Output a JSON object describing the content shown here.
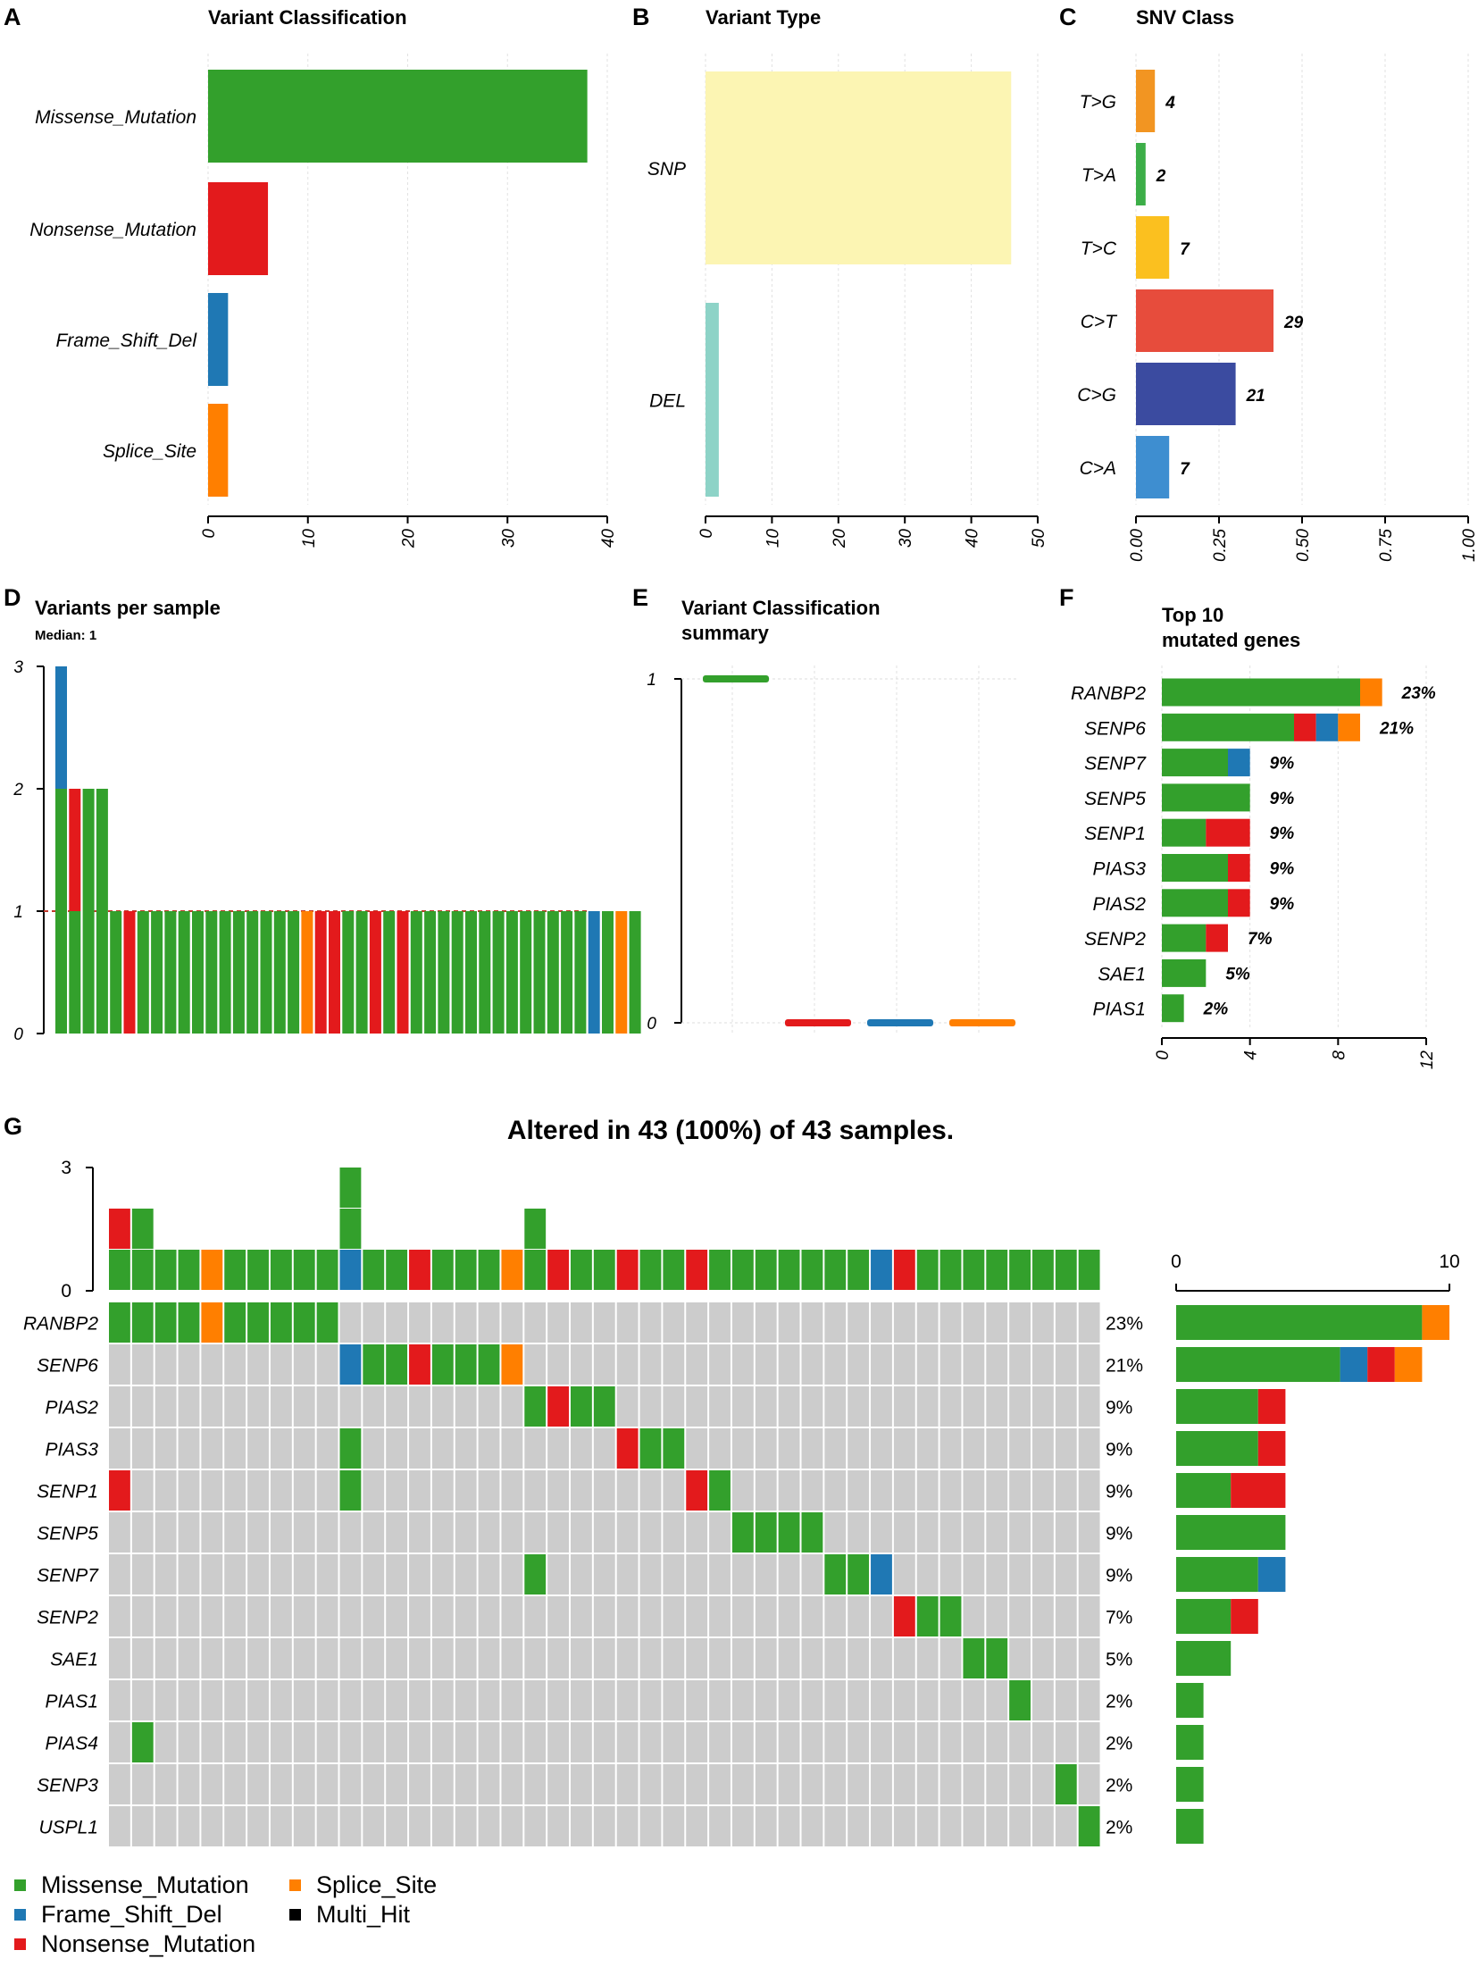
{
  "colors": {
    "Missense_Mutation": "#33a02c",
    "Nonsense_Mutation": "#e31a1c",
    "Frame_Shift_Del": "#1f78b4",
    "Splice_Site": "#ff7f00",
    "Multi_Hit": "#000000",
    "SNP": "#fcf5b3",
    "DEL": "#8dd3c7",
    "none": "#cccccc",
    "T>G": "#f29522",
    "T>A": "#3cae48",
    "T>C": "#fbc01f",
    "C>T": "#e74c3c",
    "C>G": "#3b4ba0",
    "C>A": "#3e8ed0"
  },
  "chart_data": [
    {
      "panel": "A",
      "type": "bar",
      "orientation": "horizontal",
      "title": "Variant Classification",
      "categories": [
        "Missense_Mutation",
        "Nonsense_Mutation",
        "Frame_Shift_Del",
        "Splice_Site"
      ],
      "values": [
        38,
        6,
        2,
        2
      ],
      "xlim": [
        0,
        40
      ],
      "xticks": [
        "0",
        "10",
        "20",
        "30",
        "40"
      ],
      "grid": true
    },
    {
      "panel": "B",
      "type": "bar",
      "orientation": "horizontal",
      "title": "Variant Type",
      "categories": [
        "SNP",
        "DEL"
      ],
      "values": [
        46,
        2
      ],
      "xlim": [
        0,
        50
      ],
      "xticks": [
        "0",
        "10",
        "20",
        "30",
        "40",
        "50"
      ],
      "grid": true
    },
    {
      "panel": "C",
      "type": "bar",
      "orientation": "horizontal",
      "title": "SNV Class",
      "categories": [
        "T>G",
        "T>A",
        "T>C",
        "C>T",
        "C>G",
        "C>A"
      ],
      "counts": [
        4,
        2,
        7,
        29,
        21,
        7
      ],
      "fractions": [
        0.057,
        0.029,
        0.1,
        0.414,
        0.3,
        0.1
      ],
      "xlim": [
        0,
        1
      ],
      "xticks": [
        "0.00",
        "0.25",
        "0.50",
        "0.75",
        "1.00"
      ],
      "grid": true
    },
    {
      "panel": "D",
      "type": "bar",
      "stacked": true,
      "title": "Variants per sample",
      "subtitle": "Median: 1",
      "ylim": [
        0,
        3
      ],
      "yticks": [
        "0",
        "1",
        "2",
        "3"
      ],
      "samples": [
        [
          "Missense_Mutation",
          "Missense_Mutation",
          "Frame_Shift_Del"
        ],
        [
          "Missense_Mutation",
          "Nonsense_Mutation"
        ],
        [
          "Missense_Mutation",
          "Missense_Mutation"
        ],
        [
          "Missense_Mutation",
          "Missense_Mutation"
        ],
        [
          "Missense_Mutation"
        ],
        [
          "Nonsense_Mutation"
        ],
        [
          "Missense_Mutation"
        ],
        [
          "Missense_Mutation"
        ],
        [
          "Missense_Mutation"
        ],
        [
          "Missense_Mutation"
        ],
        [
          "Missense_Mutation"
        ],
        [
          "Missense_Mutation"
        ],
        [
          "Missense_Mutation"
        ],
        [
          "Missense_Mutation"
        ],
        [
          "Missense_Mutation"
        ],
        [
          "Missense_Mutation"
        ],
        [
          "Missense_Mutation"
        ],
        [
          "Missense_Mutation"
        ],
        [
          "Splice_Site"
        ],
        [
          "Nonsense_Mutation"
        ],
        [
          "Nonsense_Mutation"
        ],
        [
          "Missense_Mutation"
        ],
        [
          "Missense_Mutation"
        ],
        [
          "Nonsense_Mutation"
        ],
        [
          "Missense_Mutation"
        ],
        [
          "Nonsense_Mutation"
        ],
        [
          "Missense_Mutation"
        ],
        [
          "Missense_Mutation"
        ],
        [
          "Missense_Mutation"
        ],
        [
          "Missense_Mutation"
        ],
        [
          "Missense_Mutation"
        ],
        [
          "Missense_Mutation"
        ],
        [
          "Missense_Mutation"
        ],
        [
          "Missense_Mutation"
        ],
        [
          "Missense_Mutation"
        ],
        [
          "Missense_Mutation"
        ],
        [
          "Missense_Mutation"
        ],
        [
          "Missense_Mutation"
        ],
        [
          "Missense_Mutation"
        ],
        [
          "Frame_Shift_Del"
        ],
        [
          "Missense_Mutation"
        ],
        [
          "Splice_Site"
        ],
        [
          "Missense_Mutation"
        ]
      ]
    },
    {
      "panel": "E",
      "type": "box",
      "title_lines": [
        "Variant Classification",
        "summary"
      ],
      "categories": [
        "Missense_Mutation",
        "Nonsense_Mutation",
        "Frame_Shift_Del",
        "Splice_Site"
      ],
      "medians": [
        1,
        0,
        0,
        0
      ],
      "ylim": [
        0,
        1
      ],
      "yticks": [
        "0",
        "1"
      ]
    },
    {
      "panel": "F",
      "type": "bar",
      "orientation": "horizontal",
      "stacked": true,
      "title_lines": [
        "Top 10",
        "mutated genes"
      ],
      "genes": [
        {
          "gene": "RANBP2",
          "pct": "23%",
          "segments": [
            [
              "Missense_Mutation",
              9
            ],
            [
              "Splice_Site",
              1
            ]
          ]
        },
        {
          "gene": "SENP6",
          "pct": "21%",
          "segments": [
            [
              "Missense_Mutation",
              6
            ],
            [
              "Nonsense_Mutation",
              1
            ],
            [
              "Frame_Shift_Del",
              1
            ],
            [
              "Splice_Site",
              1
            ]
          ]
        },
        {
          "gene": "SENP7",
          "pct": "9%",
          "segments": [
            [
              "Missense_Mutation",
              3
            ],
            [
              "Frame_Shift_Del",
              1
            ]
          ]
        },
        {
          "gene": "SENP5",
          "pct": "9%",
          "segments": [
            [
              "Missense_Mutation",
              4
            ]
          ]
        },
        {
          "gene": "SENP1",
          "pct": "9%",
          "segments": [
            [
              "Missense_Mutation",
              2
            ],
            [
              "Nonsense_Mutation",
              2
            ]
          ]
        },
        {
          "gene": "PIAS3",
          "pct": "9%",
          "segments": [
            [
              "Missense_Mutation",
              3
            ],
            [
              "Nonsense_Mutation",
              1
            ]
          ]
        },
        {
          "gene": "PIAS2",
          "pct": "9%",
          "segments": [
            [
              "Missense_Mutation",
              3
            ],
            [
              "Nonsense_Mutation",
              1
            ]
          ]
        },
        {
          "gene": "SENP2",
          "pct": "7%",
          "segments": [
            [
              "Missense_Mutation",
              2
            ],
            [
              "Nonsense_Mutation",
              1
            ]
          ]
        },
        {
          "gene": "SAE1",
          "pct": "5%",
          "segments": [
            [
              "Missense_Mutation",
              2
            ]
          ]
        },
        {
          "gene": "PIAS1",
          "pct": "2%",
          "segments": [
            [
              "Missense_Mutation",
              1
            ]
          ]
        }
      ],
      "xlim": [
        0,
        12
      ],
      "xticks": [
        "0",
        "4",
        "8",
        "12"
      ]
    },
    {
      "panel": "G",
      "type": "heatmap",
      "title": "Altered in 43 (100%) of 43 samples.",
      "top_ylim": [
        0,
        3
      ],
      "top_yticks": [
        "0",
        "3"
      ],
      "right_xlim": [
        0,
        10
      ],
      "right_xticks": [
        "0",
        "10"
      ],
      "sample_count": 43,
      "top_bars": [
        [
          "Missense_Mutation",
          "Nonsense_Mutation"
        ],
        [
          "Missense_Mutation",
          "Missense_Mutation"
        ],
        [
          "Missense_Mutation"
        ],
        [
          "Missense_Mutation"
        ],
        [
          "Splice_Site"
        ],
        [
          "Missense_Mutation"
        ],
        [
          "Missense_Mutation"
        ],
        [
          "Missense_Mutation"
        ],
        [
          "Missense_Mutation"
        ],
        [
          "Missense_Mutation"
        ],
        [
          "Frame_Shift_Del",
          "Missense_Mutation",
          "Missense_Mutation"
        ],
        [
          "Missense_Mutation"
        ],
        [
          "Missense_Mutation"
        ],
        [
          "Nonsense_Mutation"
        ],
        [
          "Missense_Mutation"
        ],
        [
          "Missense_Mutation"
        ],
        [
          "Missense_Mutation"
        ],
        [
          "Splice_Site"
        ],
        [
          "Missense_Mutation",
          "Missense_Mutation"
        ],
        [
          "Nonsense_Mutation"
        ],
        [
          "Missense_Mutation"
        ],
        [
          "Missense_Mutation"
        ],
        [
          "Nonsense_Mutation"
        ],
        [
          "Missense_Mutation"
        ],
        [
          "Missense_Mutation"
        ],
        [
          "Nonsense_Mutation"
        ],
        [
          "Missense_Mutation"
        ],
        [
          "Missense_Mutation"
        ],
        [
          "Missense_Mutation"
        ],
        [
          "Missense_Mutation"
        ],
        [
          "Missense_Mutation"
        ],
        [
          "Missense_Mutation"
        ],
        [
          "Missense_Mutation"
        ],
        [
          "Frame_Shift_Del"
        ],
        [
          "Nonsense_Mutation"
        ],
        [
          "Missense_Mutation"
        ],
        [
          "Missense_Mutation"
        ],
        [
          "Missense_Mutation"
        ],
        [
          "Missense_Mutation"
        ],
        [
          "Missense_Mutation"
        ],
        [
          "Missense_Mutation"
        ],
        [
          "Missense_Mutation"
        ],
        [
          "Missense_Mutation"
        ]
      ],
      "rows": [
        {
          "gene": "RANBP2",
          "pct": "23%",
          "cells": {
            "0": "Missense_Mutation",
            "1": "Missense_Mutation",
            "2": "Missense_Mutation",
            "3": "Missense_Mutation",
            "4": "Splice_Site",
            "5": "Missense_Mutation",
            "6": "Missense_Mutation",
            "7": "Missense_Mutation",
            "8": "Missense_Mutation",
            "9": "Missense_Mutation"
          },
          "segments": [
            [
              "Missense_Mutation",
              9
            ],
            [
              "Splice_Site",
              1
            ]
          ]
        },
        {
          "gene": "SENP6",
          "pct": "21%",
          "cells": {
            "10": "Frame_Shift_Del",
            "11": "Missense_Mutation",
            "12": "Missense_Mutation",
            "13": "Nonsense_Mutation",
            "14": "Missense_Mutation",
            "15": "Missense_Mutation",
            "16": "Missense_Mutation",
            "17": "Splice_Site"
          },
          "segments": [
            [
              "Missense_Mutation",
              6
            ],
            [
              "Frame_Shift_Del",
              1
            ],
            [
              "Nonsense_Mutation",
              1
            ],
            [
              "Splice_Site",
              1
            ]
          ]
        },
        {
          "gene": "PIAS2",
          "pct": "9%",
          "cells": {
            "18": "Missense_Mutation",
            "19": "Nonsense_Mutation",
            "20": "Missense_Mutation",
            "21": "Missense_Mutation"
          },
          "segments": [
            [
              "Missense_Mutation",
              3
            ],
            [
              "Nonsense_Mutation",
              1
            ]
          ]
        },
        {
          "gene": "PIAS3",
          "pct": "9%",
          "cells": {
            "10": "Missense_Mutation",
            "22": "Nonsense_Mutation",
            "23": "Missense_Mutation",
            "24": "Missense_Mutation"
          },
          "segments": [
            [
              "Missense_Mutation",
              3
            ],
            [
              "Nonsense_Mutation",
              1
            ]
          ]
        },
        {
          "gene": "SENP1",
          "pct": "9%",
          "cells": {
            "0": "Nonsense_Mutation",
            "10": "Missense_Mutation",
            "25": "Nonsense_Mutation",
            "26": "Missense_Mutation"
          },
          "segments": [
            [
              "Missense_Mutation",
              2
            ],
            [
              "Nonsense_Mutation",
              2
            ]
          ]
        },
        {
          "gene": "SENP5",
          "pct": "9%",
          "cells": {
            "27": "Missense_Mutation",
            "28": "Missense_Mutation",
            "29": "Missense_Mutation",
            "30": "Missense_Mutation"
          },
          "segments": [
            [
              "Missense_Mutation",
              4
            ]
          ]
        },
        {
          "gene": "SENP7",
          "pct": "9%",
          "cells": {
            "18": "Missense_Mutation",
            "31": "Missense_Mutation",
            "32": "Missense_Mutation",
            "33": "Frame_Shift_Del"
          },
          "segments": [
            [
              "Missense_Mutation",
              3
            ],
            [
              "Frame_Shift_Del",
              1
            ]
          ]
        },
        {
          "gene": "SENP2",
          "pct": "7%",
          "cells": {
            "34": "Nonsense_Mutation",
            "35": "Missense_Mutation",
            "36": "Missense_Mutation"
          },
          "segments": [
            [
              "Missense_Mutation",
              2
            ],
            [
              "Nonsense_Mutation",
              1
            ]
          ]
        },
        {
          "gene": "SAE1",
          "pct": "5%",
          "cells": {
            "37": "Missense_Mutation",
            "38": "Missense_Mutation"
          },
          "segments": [
            [
              "Missense_Mutation",
              2
            ]
          ]
        },
        {
          "gene": "PIAS1",
          "pct": "2%",
          "cells": {
            "39": "Missense_Mutation"
          },
          "segments": [
            [
              "Missense_Mutation",
              1
            ]
          ]
        },
        {
          "gene": "PIAS4",
          "pct": "2%",
          "cells": {
            "1": "Missense_Mutation"
          },
          "segments": [
            [
              "Missense_Mutation",
              1
            ]
          ]
        },
        {
          "gene": "SENP3",
          "pct": "2%",
          "cells": {
            "41": "Missense_Mutation"
          },
          "segments": [
            [
              "Missense_Mutation",
              1
            ]
          ]
        },
        {
          "gene": "USPL1",
          "pct": "2%",
          "cells": {
            "42": "Missense_Mutation"
          },
          "segments": [
            [
              "Missense_Mutation",
              1
            ]
          ]
        }
      ],
      "legend": [
        {
          "label": "Missense_Mutation",
          "key": "Missense_Mutation"
        },
        {
          "label": "Splice_Site",
          "key": "Splice_Site"
        },
        {
          "label": "Frame_Shift_Del",
          "key": "Frame_Shift_Del"
        },
        {
          "label": "Multi_Hit",
          "key": "Multi_Hit"
        },
        {
          "label": "Nonsense_Mutation",
          "key": "Nonsense_Mutation"
        }
      ]
    }
  ]
}
